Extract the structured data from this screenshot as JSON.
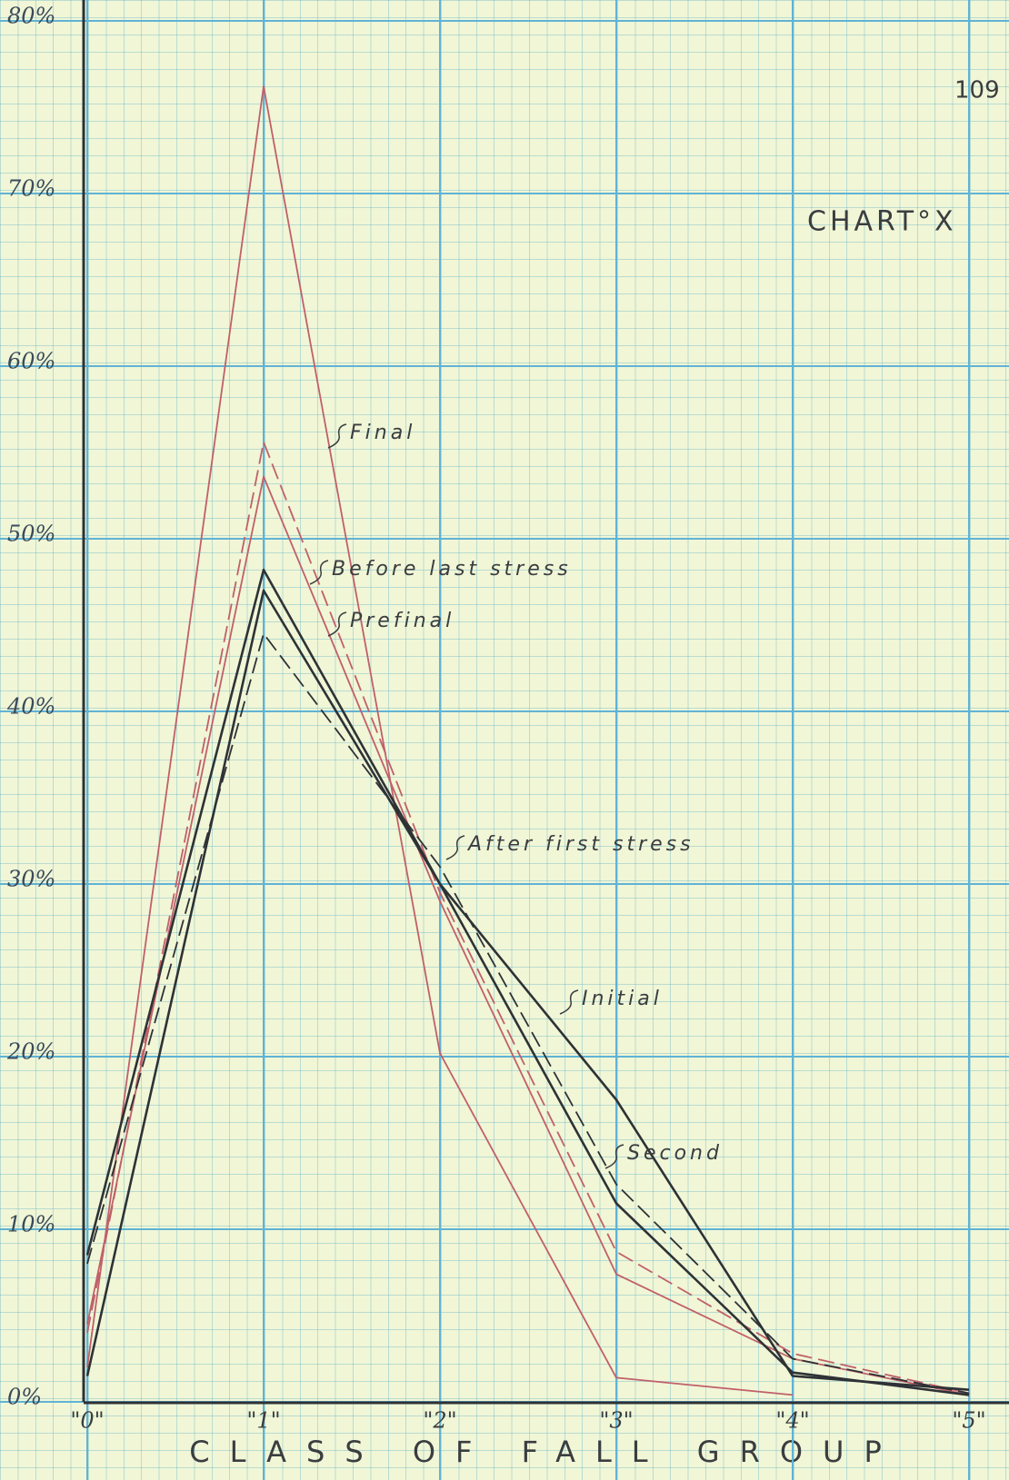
{
  "chart_data": {
    "type": "line",
    "page_number": "109",
    "title": "CHART°X",
    "x_label": "CLASS OF FALL GROUP",
    "categories": [
      "\"0\"",
      "\"1\"",
      "\"2\"",
      "\"3\"",
      "\"4\"",
      "\"5\""
    ],
    "ylim": [
      0,
      80
    ],
    "yticks": [
      {
        "value": 0,
        "label": "0%"
      },
      {
        "value": 10,
        "label": "10%"
      },
      {
        "value": 20,
        "label": "20%"
      },
      {
        "value": 30,
        "label": "30%"
      },
      {
        "value": 40,
        "label": "40%"
      },
      {
        "value": 50,
        "label": "50%"
      },
      {
        "value": 60,
        "label": "60%"
      },
      {
        "value": 70,
        "label": "70%"
      },
      {
        "value": 80,
        "label": "80%"
      }
    ],
    "grid": true,
    "series": [
      {
        "name": "Final",
        "color": "#c0606a",
        "dashed": false,
        "values": [
          2,
          76.2,
          20.2,
          1.4,
          0.4,
          null
        ]
      },
      {
        "name": "Before last stress",
        "color": "#c0606a",
        "dashed": true,
        "values": [
          4,
          55.6,
          29.5,
          8.7,
          2.8,
          0.5
        ]
      },
      {
        "name": "Prefinal",
        "color": "#c0606a",
        "dashed": false,
        "values": [
          4.5,
          53.6,
          29,
          7.4,
          2.5,
          0.4
        ]
      },
      {
        "name": "After first stress",
        "color": "#2e3236",
        "dashed": true,
        "values": [
          8,
          44.5,
          31,
          12.6,
          2.5,
          0.5
        ]
      },
      {
        "name": "Initial",
        "color": "#2e3236",
        "dashed": false,
        "values": [
          1.5,
          47,
          30,
          17.5,
          1.5,
          0.7
        ]
      },
      {
        "name": "Second",
        "color": "#2e3236",
        "dashed": false,
        "values": [
          8.5,
          48.2,
          30,
          11.5,
          1.7,
          0.4
        ]
      }
    ]
  }
}
